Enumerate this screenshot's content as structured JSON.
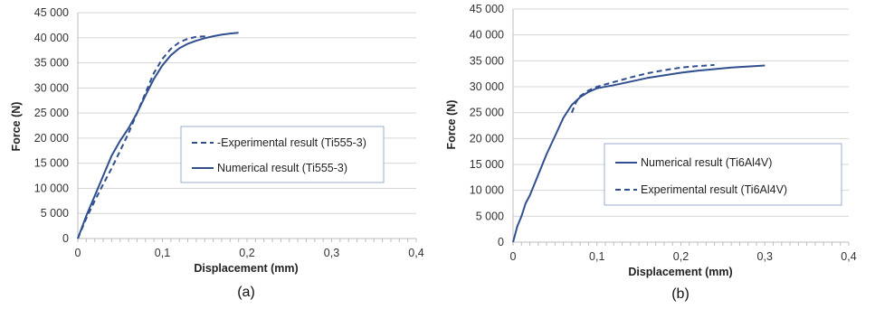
{
  "chart_data": [
    {
      "type": "line",
      "caption": "(a)",
      "xlabel": "Displacement (mm)",
      "ylabel": "Force (N)",
      "xlim": [
        0,
        0.4
      ],
      "ylim": [
        0,
        45000
      ],
      "x_ticks": [
        "0",
        "0,1",
        "0,2",
        "0,3",
        "0,4"
      ],
      "y_ticks": [
        "0",
        "5 000",
        "10 000",
        "15 000",
        "20 000",
        "25 000",
        "30 000",
        "35 000",
        "40 000",
        "45 000"
      ],
      "grid": "horizontal",
      "legend": "right-middle",
      "series": [
        {
          "name": "-Experimental result (Ti555-3)",
          "style": "dashed",
          "color": "#2f4f8f",
          "points": [
            [
              0,
              0
            ],
            [
              0.01,
              4000
            ],
            [
              0.02,
              7500
            ],
            [
              0.03,
              10800
            ],
            [
              0.04,
              14000
            ],
            [
              0.05,
              17500
            ],
            [
              0.06,
              21000
            ],
            [
              0.07,
              25000
            ],
            [
              0.08,
              29000
            ],
            [
              0.09,
              33000
            ],
            [
              0.1,
              35800
            ],
            [
              0.11,
              37800
            ],
            [
              0.12,
              39100
            ],
            [
              0.13,
              39800
            ],
            [
              0.14,
              40200
            ],
            [
              0.155,
              40300
            ]
          ]
        },
        {
          "name": "Numerical result (Ti555-3)",
          "style": "solid",
          "color": "#2f4f8f",
          "points": [
            [
              0,
              0
            ],
            [
              0.01,
              4500
            ],
            [
              0.02,
              8500
            ],
            [
              0.03,
              12500
            ],
            [
              0.04,
              16500
            ],
            [
              0.05,
              19500
            ],
            [
              0.06,
              22000
            ],
            [
              0.07,
              25000
            ],
            [
              0.08,
              28500
            ],
            [
              0.09,
              31800
            ],
            [
              0.1,
              34500
            ],
            [
              0.11,
              36500
            ],
            [
              0.12,
              37900
            ],
            [
              0.13,
              38800
            ],
            [
              0.14,
              39400
            ],
            [
              0.15,
              39900
            ],
            [
              0.16,
              40300
            ],
            [
              0.17,
              40600
            ],
            [
              0.18,
              40850
            ],
            [
              0.19,
              41000
            ]
          ]
        }
      ]
    },
    {
      "type": "line",
      "caption": "(b)",
      "xlabel": "Displacement (mm)",
      "ylabel": "Force (N)",
      "xlim": [
        0,
        0.4
      ],
      "ylim": [
        0,
        45000
      ],
      "x_ticks": [
        "0",
        "0,1",
        "0,2",
        "0,3",
        "0,4"
      ],
      "y_ticks": [
        "0",
        "5 000",
        "10 000",
        "15 000",
        "20 000",
        "25 000",
        "30 000",
        "35 000",
        "40 000",
        "45 000"
      ],
      "grid": "horizontal",
      "legend": "right-middle",
      "series": [
        {
          "name": "Numerical result (Ti6Al4V)",
          "style": "solid",
          "color": "#2f4f8f",
          "points": [
            [
              0,
              0
            ],
            [
              0.005,
              3000
            ],
            [
              0.01,
              5000
            ],
            [
              0.015,
              7500
            ],
            [
              0.02,
              9000
            ],
            [
              0.03,
              13000
            ],
            [
              0.04,
              17000
            ],
            [
              0.05,
              20500
            ],
            [
              0.06,
              24000
            ],
            [
              0.07,
              26500
            ],
            [
              0.08,
              28000
            ],
            [
              0.09,
              29000
            ],
            [
              0.1,
              29700
            ],
            [
              0.12,
              30300
            ],
            [
              0.14,
              31000
            ],
            [
              0.16,
              31700
            ],
            [
              0.18,
              32200
            ],
            [
              0.2,
              32700
            ],
            [
              0.22,
              33100
            ],
            [
              0.24,
              33400
            ],
            [
              0.26,
              33700
            ],
            [
              0.28,
              33900
            ],
            [
              0.3,
              34100
            ]
          ]
        },
        {
          "name": "Experimental result (Ti6Al4V)",
          "style": "dashed",
          "color": "#2f4f8f",
          "points": [
            [
              0.07,
              25000
            ],
            [
              0.075,
              27000
            ],
            [
              0.08,
              28200
            ],
            [
              0.09,
              29300
            ],
            [
              0.1,
              30000
            ],
            [
              0.12,
              30900
            ],
            [
              0.14,
              31800
            ],
            [
              0.16,
              32600
            ],
            [
              0.18,
              33200
            ],
            [
              0.2,
              33700
            ],
            [
              0.22,
              34000
            ],
            [
              0.24,
              34200
            ]
          ]
        }
      ]
    }
  ]
}
